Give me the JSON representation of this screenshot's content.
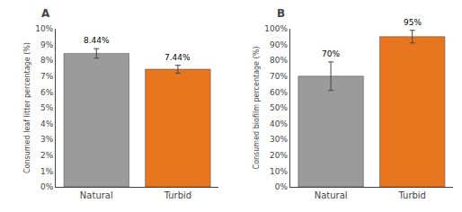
{
  "chart_data": [
    {
      "type": "bar",
      "title": "A",
      "categories": [
        "Natural",
        "Turbid"
      ],
      "values": [
        8.44,
        7.44
      ],
      "errors": [
        0.3,
        0.25
      ],
      "colors": [
        "#9B9B9B",
        "#E8761E"
      ],
      "ylabel": "Consumed leaf litter percentage (%)",
      "ylim": [
        0,
        10
      ],
      "yticks": [
        {
          "value": 0,
          "label": "0%"
        },
        {
          "value": 1,
          "label": "1%"
        },
        {
          "value": 2,
          "label": "2%"
        },
        {
          "value": 3,
          "label": "3%"
        },
        {
          "value": 4,
          "label": "4%"
        },
        {
          "value": 5,
          "label": "5%"
        },
        {
          "value": 6,
          "label": "6%"
        },
        {
          "value": 7,
          "label": "7%"
        },
        {
          "value": 8,
          "label": "8%"
        },
        {
          "value": 9,
          "label": "9%"
        },
        {
          "value": 10,
          "label": "10%"
        }
      ],
      "data_labels": true,
      "value_labels": [
        "8.44%",
        "7.44%"
      ],
      "grid": false
    },
    {
      "type": "bar",
      "title": "B",
      "categories": [
        "Natural",
        "Turbid"
      ],
      "values": [
        70,
        95
      ],
      "errors": [
        9,
        4
      ],
      "colors": [
        "#9B9B9B",
        "#E8761E"
      ],
      "ylabel": "Consumed biofilm percentage (%)",
      "ylim": [
        0,
        100
      ],
      "yticks": [
        {
          "value": 0,
          "label": "0%"
        },
        {
          "value": 10,
          "label": "10%"
        },
        {
          "value": 20,
          "label": "20%"
        },
        {
          "value": 30,
          "label": "30%"
        },
        {
          "value": 40,
          "label": "40%"
        },
        {
          "value": 50,
          "label": "50%"
        },
        {
          "value": 60,
          "label": "60%"
        },
        {
          "value": 70,
          "label": "70%"
        },
        {
          "value": 80,
          "label": "80%"
        },
        {
          "value": 90,
          "label": "90%"
        },
        {
          "value": 100,
          "label": "100%"
        }
      ],
      "data_labels": true,
      "value_labels": [
        "70%",
        "95%"
      ],
      "grid": false
    }
  ]
}
